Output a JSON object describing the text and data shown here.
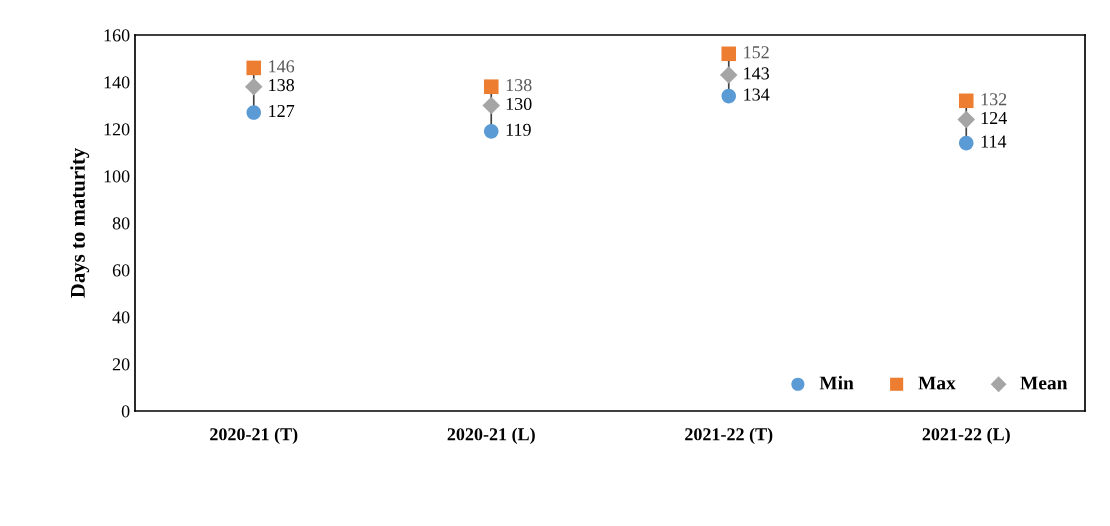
{
  "chart_data": {
    "type": "scatter",
    "ylabel": "Days to maturity",
    "categories": [
      "2020-21 (T)",
      "2020-21 (L)",
      "2021-22 (T)",
      "2021-22 (L)"
    ],
    "series": [
      {
        "name": "Min",
        "color": "#5b9bd5",
        "marker": "circle",
        "values": [
          127,
          119,
          134,
          114
        ]
      },
      {
        "name": "Max",
        "color": "#ed7d31",
        "marker": "square",
        "values": [
          146,
          138,
          152,
          132
        ]
      },
      {
        "name": "Mean",
        "color": "#a5a5a5",
        "marker": "diamond",
        "values": [
          138,
          130,
          143,
          124
        ]
      }
    ],
    "ylim": [
      0,
      160
    ],
    "yticks": [
      0,
      20,
      40,
      60,
      80,
      100,
      120,
      140,
      160
    ],
    "data_labels": true,
    "grid": false,
    "legend": "bottom right"
  }
}
